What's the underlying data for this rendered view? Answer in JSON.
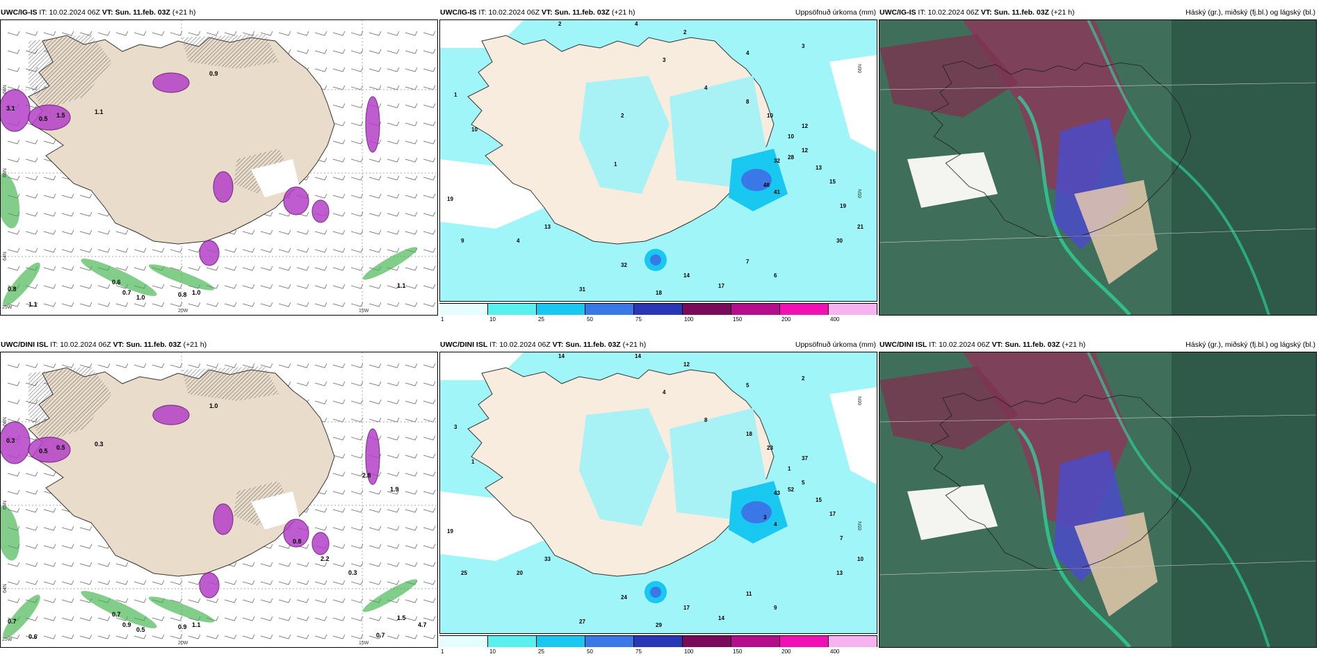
{
  "panels": [
    {
      "model": "UWC/IG-IS",
      "it_label": "IT:",
      "it_value": "10.02.2024 06Z",
      "vt_label": "VT:",
      "vt_value": "Sun. 11.feb. 03Z",
      "lead": "(+21 h)",
      "title_right": "",
      "kind": "precip-type",
      "lat_labels": [
        "66N",
        "65N",
        "64N"
      ],
      "lon_labels": [
        "25W",
        "20W",
        "15W"
      ],
      "values": [
        "3.1",
        "0.5",
        "1.5",
        "1.1",
        "0.8",
        "1.1",
        "0.6",
        "0.7",
        "0.8",
        "1.1",
        "1.0",
        "1.0",
        "0.9"
      ]
    },
    {
      "model": "UWC/IG-IS",
      "it_label": "IT:",
      "it_value": "10.02.2024 06Z",
      "vt_label": "VT:",
      "vt_value": "Sun. 11.feb. 03Z",
      "lead": "(+21 h)",
      "title_right": "Uppsöfnuð úrkoma (mm)",
      "kind": "precip-accum",
      "lat_labels": [
        "66N",
        "65N"
      ],
      "colorbar_ticks": [
        "1",
        "10",
        "25",
        "50",
        "75",
        "100",
        "150",
        "200",
        "400"
      ],
      "colorbar_colors": [
        "#e6fdfd",
        "#59f0f0",
        "#18c8f0",
        "#3a78e8",
        "#2a36b8",
        "#7a0a5a",
        "#b40e8c",
        "#f010b4",
        "#f7b2f0"
      ],
      "values": [
        "2",
        "4",
        "2",
        "4",
        "3",
        "1",
        "10",
        "19",
        "9",
        "4",
        "13",
        "31",
        "32",
        "18",
        "14",
        "17",
        "7",
        "6",
        "30",
        "21",
        "19",
        "15",
        "13",
        "12",
        "10",
        "41",
        "48",
        "32",
        "28",
        "12",
        "10",
        "8",
        "4",
        "3",
        "2",
        "1"
      ]
    },
    {
      "model": "UWC/IG-IS",
      "it_label": "IT:",
      "it_value": "10.02.2024 06Z",
      "vt_label": "VT:",
      "vt_value": "Sun. 11.feb. 03Z",
      "lead": "(+21 h)",
      "title_right": "Háský (gr.), miðský (fj.bl.) og lágský (bl.)",
      "kind": "clouds"
    },
    {
      "model": "UWC/DINI ISL",
      "it_label": "IT:",
      "it_value": "10.02.2024 06Z",
      "vt_label": "VT:",
      "vt_value": "Sun. 11.feb. 03Z",
      "lead": "(+21 h)",
      "title_right": "",
      "kind": "precip-type",
      "lat_labels": [
        "66N",
        "65N",
        "64N"
      ],
      "lon_labels": [
        "25W",
        "20W",
        "15W"
      ],
      "values": [
        "0.3",
        "0.5",
        "0.5",
        "0.3",
        "0.7",
        "0.6",
        "0.7",
        "0.9",
        "0.9",
        "1.5",
        "0.5",
        "1.1",
        "1.0",
        "0.8",
        "2.2",
        "2.8",
        "1.9",
        "0.3",
        "4.7",
        "0.7"
      ]
    },
    {
      "model": "UWC/DINI ISL",
      "it_label": "IT:",
      "it_value": "10.02.2024 06Z",
      "vt_label": "VT:",
      "vt_value": "Sun. 11.feb. 03Z",
      "lead": "(+21 h)",
      "title_right": "Uppsöfnuð úrkoma (mm)",
      "kind": "precip-accum",
      "lat_labels": [
        "66N",
        "65N"
      ],
      "colorbar_ticks": [
        "1",
        "10",
        "25",
        "50",
        "75",
        "100",
        "150",
        "200",
        "400"
      ],
      "colorbar_colors": [
        "#e6fdfd",
        "#59f0f0",
        "#18c8f0",
        "#3a78e8",
        "#2a36b8",
        "#7a0a5a",
        "#b40e8c",
        "#f010b4",
        "#f7b2f0"
      ],
      "values": [
        "14",
        "14",
        "12",
        "5",
        "2",
        "3",
        "1",
        "19",
        "25",
        "20",
        "33",
        "27",
        "24",
        "29",
        "17",
        "14",
        "11",
        "9",
        "13",
        "10",
        "7",
        "17",
        "15",
        "5",
        "1",
        "4",
        "3",
        "43",
        "52",
        "37",
        "23",
        "18",
        "8",
        "4"
      ]
    },
    {
      "model": "UWC/DINI ISL",
      "it_label": "IT:",
      "it_value": "10.02.2024 06Z",
      "vt_label": "VT:",
      "vt_value": "Sun. 11.feb. 03Z",
      "lead": "(+21 h)",
      "title_right": "Háský (gr.), miðský (fj.bl.) og lágský (bl.)",
      "kind": "clouds"
    }
  ]
}
